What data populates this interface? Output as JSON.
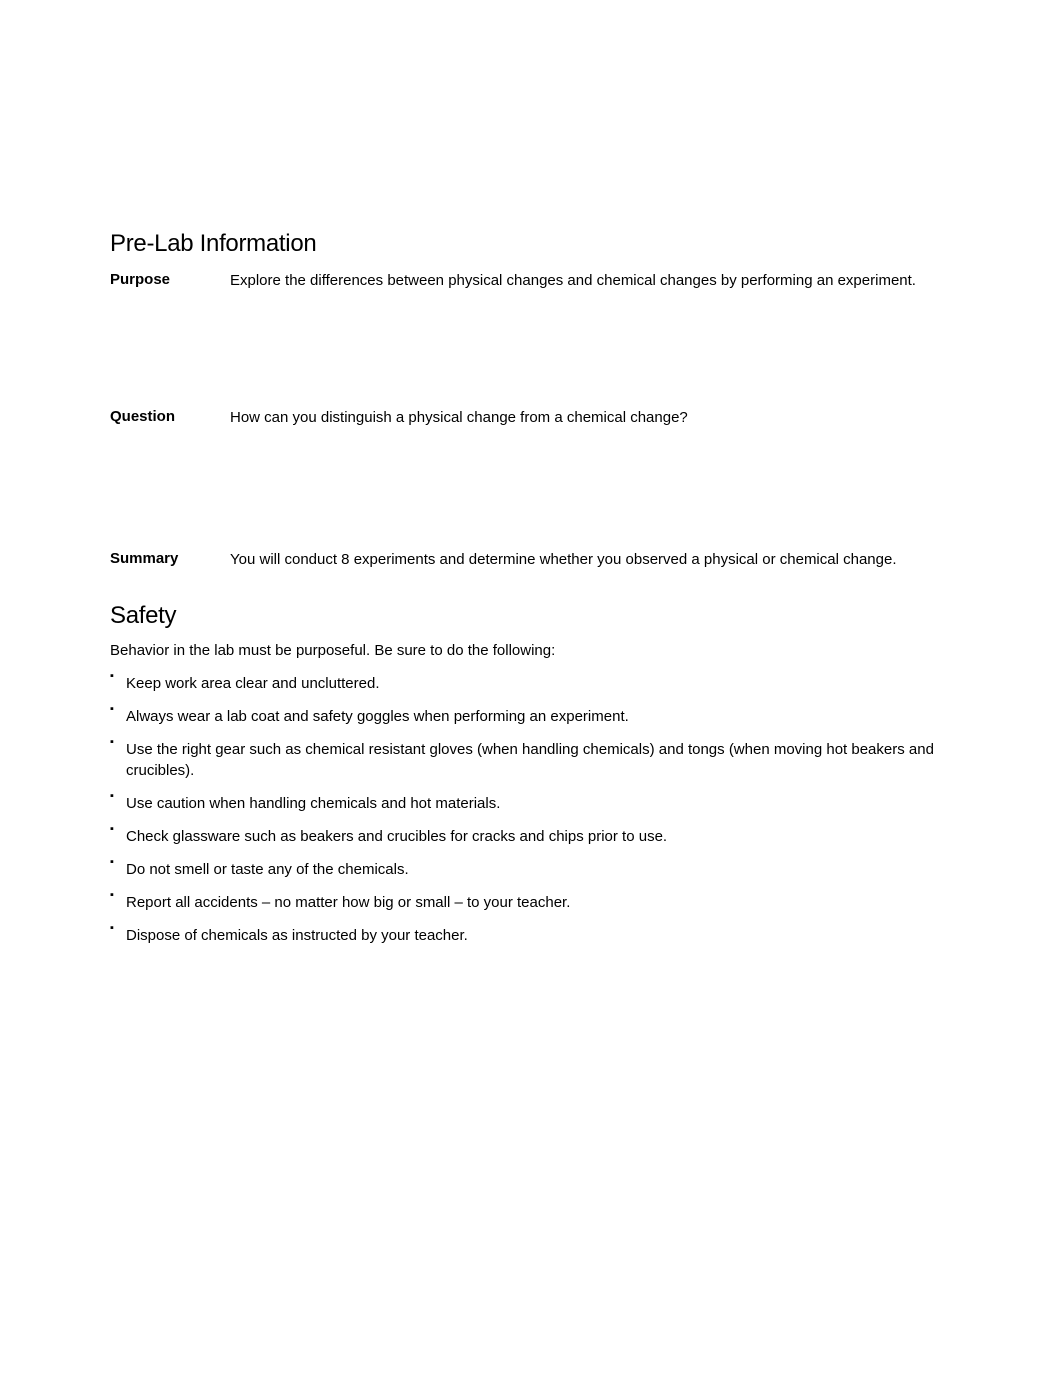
{
  "prelab": {
    "heading": "Pre-Lab Information",
    "purpose_label": "Purpose",
    "purpose_text": "Explore the differences between physical changes and chemical changes by performing an experiment.",
    "question_label": "Question",
    "question_text": "How can you distinguish a physical change from a chemical change?",
    "summary_label": "Summary",
    "summary_text": "You will conduct 8 experiments and determine whether you observed a physical or chemical change."
  },
  "safety": {
    "heading": "Safety",
    "intro": "Behavior in the lab must be purposeful. Be sure to do the following:",
    "items": [
      "Keep work area clear and uncluttered.",
      "Always wear a lab coat and safety goggles when performing an experiment.",
      "Use the right gear such as chemical resistant gloves (when handling chemicals) and tongs (when moving hot beakers and crucibles).",
      "Use caution when handling chemicals and hot materials.",
      "Check glassware such as beakers and crucibles for cracks and chips prior to use.",
      "Do not smell or taste any of the chemicals.",
      "Report all accidents – no matter how big or small – to your teacher.",
      "Dispose of chemicals as instructed by your teacher."
    ]
  },
  "colors": {
    "background": "#ffffff",
    "text": "#000000"
  },
  "typography": {
    "heading_fontsize": 24,
    "body_fontsize": 15,
    "font_family": "Arial"
  }
}
